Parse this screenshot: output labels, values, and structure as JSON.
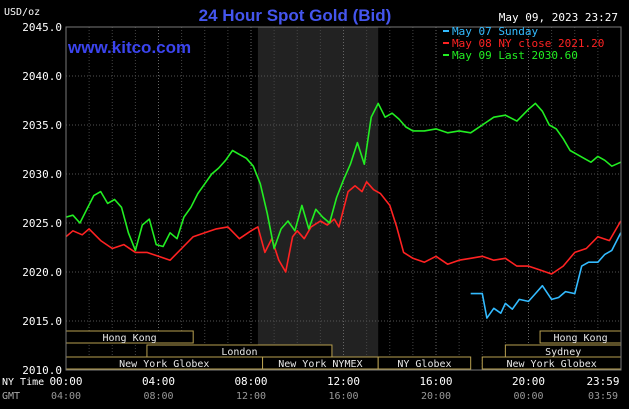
{
  "chart_data": {
    "type": "line",
    "title": "24 Hour Spot Gold (Bid)",
    "watermark": "www.kitco.com",
    "timestamp": "May 09, 2023 23:27",
    "ylabel": "USD/oz",
    "ylim": [
      2010,
      2045
    ],
    "y_ticks": [
      "2045.0",
      "2040.0",
      "2035.0",
      "2030.0",
      "2025.0",
      "2020.0",
      "2015.0",
      "2010.0"
    ],
    "grid": true,
    "legend_position": "top-right",
    "time_rows": [
      {
        "label": "NY Time",
        "ticks": [
          "00:00",
          "04:00",
          "08:00",
          "12:00",
          "16:00",
          "20:00",
          "23:59"
        ]
      },
      {
        "label": "GMT",
        "ticks": [
          "04:00",
          "08:00",
          "12:00",
          "16:00",
          "20:00",
          "00:00",
          "03:59"
        ]
      }
    ],
    "sessions": [
      {
        "name": "Hong Kong",
        "row": 0,
        "start": 0.0,
        "end": 5.5
      },
      {
        "name": "Hong Kong",
        "row": 0,
        "start": 20.5,
        "end": 24.0
      },
      {
        "name": "London",
        "row": 1,
        "start": 3.5,
        "end": 11.5
      },
      {
        "name": "Sydney",
        "row": 1,
        "start": 19.0,
        "end": 24.0
      },
      {
        "name": "New York Globex",
        "row": 2,
        "start": 0.0,
        "end": 8.5
      },
      {
        "name": "New York NYMEX",
        "row": 2,
        "start": 8.5,
        "end": 13.5
      },
      {
        "name": "NY Globex",
        "row": 2,
        "start": 13.5,
        "end": 17.5
      },
      {
        "name": "New York Globex",
        "row": 2,
        "start": 18.0,
        "end": 24.0
      }
    ],
    "highlight_hours": [
      8.3,
      13.5
    ],
    "series": [
      {
        "name": "May 07 Sunday",
        "color": "#33bbff",
        "x": [
          17.5,
          18.0,
          18.2,
          18.5,
          18.8,
          19.0,
          19.3,
          19.6,
          20.0,
          20.3,
          20.6,
          21.0,
          21.3,
          21.6,
          22.0,
          22.3,
          22.6,
          23.0,
          23.3,
          23.6,
          23.99
        ],
        "y": [
          2017.8,
          2017.8,
          2015.3,
          2016.3,
          2015.8,
          2016.8,
          2016.2,
          2017.2,
          2017.0,
          2017.8,
          2018.6,
          2017.2,
          2017.4,
          2018.0,
          2017.8,
          2020.6,
          2021.0,
          2021.0,
          2021.8,
          2022.2,
          2024.0
        ]
      },
      {
        "name": "May 08 NY close 2021.20",
        "color": "#ff2222",
        "x": [
          0.0,
          0.3,
          0.7,
          1.0,
          1.5,
          2.0,
          2.5,
          3.0,
          3.5,
          4.0,
          4.5,
          5.0,
          5.5,
          6.0,
          6.5,
          7.0,
          7.5,
          8.0,
          8.3,
          8.6,
          8.9,
          9.2,
          9.5,
          9.8,
          10.0,
          10.3,
          10.6,
          11.0,
          11.3,
          11.6,
          11.8,
          12.0,
          12.2,
          12.5,
          12.8,
          13.0,
          13.3,
          13.6,
          14.0,
          14.3,
          14.6,
          15.0,
          15.5,
          16.0,
          16.5,
          17.0,
          17.5,
          18.0,
          18.5,
          19.0,
          19.5,
          20.0,
          20.5,
          21.0,
          21.5,
          22.0,
          22.5,
          23.0,
          23.5,
          23.99
        ],
        "y": [
          2023.6,
          2024.2,
          2023.8,
          2024.4,
          2023.2,
          2022.4,
          2022.8,
          2022.0,
          2022.0,
          2021.6,
          2021.2,
          2022.4,
          2023.6,
          2024.0,
          2024.4,
          2024.6,
          2023.4,
          2024.2,
          2024.6,
          2022.0,
          2023.4,
          2021.2,
          2020.0,
          2023.6,
          2024.2,
          2023.4,
          2024.6,
          2025.2,
          2024.8,
          2025.4,
          2024.6,
          2026.4,
          2028.2,
          2028.8,
          2028.2,
          2029.2,
          2028.4,
          2028.0,
          2026.8,
          2024.6,
          2022.0,
          2021.4,
          2021.0,
          2021.6,
          2020.8,
          2021.2,
          2021.4,
          2021.6,
          2021.2,
          2021.4,
          2020.6,
          2020.6,
          2020.2,
          2019.8,
          2020.6,
          2022.0,
          2022.4,
          2023.6,
          2023.2,
          2025.2
        ]
      },
      {
        "name": "May 09 Last 2030.60",
        "color": "#22ee22",
        "x": [
          0.0,
          0.3,
          0.6,
          0.9,
          1.2,
          1.5,
          1.8,
          2.1,
          2.4,
          2.7,
          3.0,
          3.3,
          3.6,
          3.9,
          4.2,
          4.5,
          4.8,
          5.1,
          5.4,
          5.7,
          6.0,
          6.3,
          6.6,
          6.9,
          7.2,
          7.5,
          7.8,
          8.1,
          8.4,
          8.7,
          9.0,
          9.3,
          9.6,
          9.9,
          10.2,
          10.5,
          10.8,
          11.1,
          11.4,
          11.7,
          12.0,
          12.3,
          12.6,
          12.9,
          13.2,
          13.5,
          13.8,
          14.1,
          14.4,
          14.7,
          15.0,
          15.5,
          16.0,
          16.5,
          17.0,
          17.5,
          18.0,
          18.5,
          19.0,
          19.5,
          20.0,
          20.3,
          20.6,
          20.9,
          21.2,
          21.5,
          21.8,
          22.1,
          22.4,
          22.7,
          23.0,
          23.3,
          23.6,
          23.99
        ],
        "y": [
          2025.6,
          2025.8,
          2025.0,
          2026.4,
          2027.8,
          2028.2,
          2027.0,
          2027.4,
          2026.6,
          2024.0,
          2022.2,
          2024.8,
          2025.4,
          2022.8,
          2022.6,
          2024.0,
          2023.4,
          2025.6,
          2026.6,
          2028.0,
          2029.0,
          2030.0,
          2030.6,
          2031.4,
          2032.4,
          2032.0,
          2031.6,
          2030.8,
          2029.0,
          2026.0,
          2022.4,
          2024.4,
          2025.2,
          2024.2,
          2026.8,
          2024.4,
          2026.4,
          2025.6,
          2025.0,
          2027.6,
          2029.4,
          2031.0,
          2033.2,
          2031.0,
          2035.8,
          2037.2,
          2035.8,
          2036.2,
          2035.6,
          2034.8,
          2034.4,
          2034.4,
          2034.6,
          2034.2,
          2034.4,
          2034.2,
          2035.0,
          2035.8,
          2036.0,
          2035.4,
          2036.6,
          2037.2,
          2036.4,
          2035.0,
          2034.6,
          2033.6,
          2032.4,
          2032.0,
          2031.6,
          2031.2,
          2031.8,
          2031.4,
          2030.8,
          2031.2
        ]
      }
    ]
  }
}
